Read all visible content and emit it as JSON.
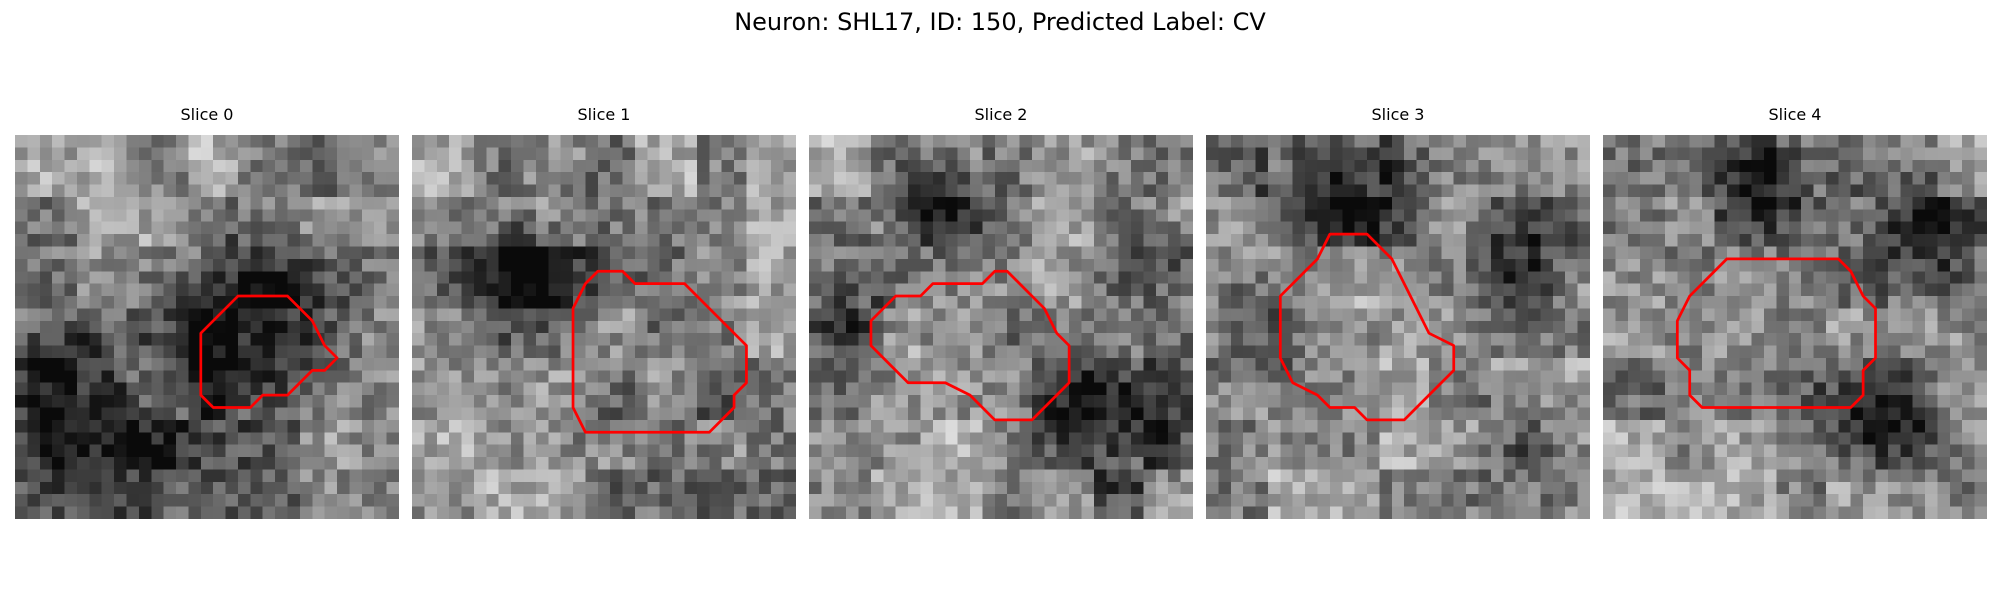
{
  "figure": {
    "title": "Neuron: SHL17, ID: 150, Predicted Label: CV",
    "contour_color": "#ff0000",
    "colormap": "grayscale",
    "grid_size": 31
  },
  "panels": [
    {
      "title": "Slice 0",
      "dark_spots": [
        [
          20,
          15,
          4.5,
          0.55
        ],
        [
          8,
          27,
          7,
          0.45
        ],
        [
          3,
          17,
          2.5,
          0.35
        ]
      ],
      "contour": [
        [
          15,
          16
        ],
        [
          18,
          13
        ],
        [
          22,
          13
        ],
        [
          24,
          15
        ],
        [
          25,
          17
        ],
        [
          26,
          18
        ],
        [
          25,
          19
        ],
        [
          24,
          19
        ],
        [
          23,
          20
        ],
        [
          22,
          21
        ],
        [
          20,
          21
        ],
        [
          19,
          22
        ],
        [
          16,
          22
        ],
        [
          15,
          21
        ],
        [
          15,
          20
        ]
      ]
    },
    {
      "title": "Slice 1",
      "dark_spots": [
        [
          9,
          11,
          3.5,
          0.5
        ],
        [
          20,
          26,
          5,
          0.2
        ]
      ],
      "contour": [
        [
          13,
          14
        ],
        [
          14,
          12
        ],
        [
          15,
          11
        ],
        [
          17,
          11
        ],
        [
          18,
          12
        ],
        [
          22,
          12
        ],
        [
          25,
          15
        ],
        [
          26,
          16
        ],
        [
          27,
          17
        ],
        [
          27,
          20
        ],
        [
          26,
          21
        ],
        [
          26,
          22
        ],
        [
          24,
          24
        ],
        [
          22,
          24
        ],
        [
          17,
          24
        ],
        [
          14,
          24
        ],
        [
          13,
          22
        ],
        [
          13,
          17
        ]
      ]
    },
    {
      "title": "Slice 2",
      "dark_spots": [
        [
          10,
          5,
          3,
          0.4
        ],
        [
          24,
          23,
          4,
          0.45
        ],
        [
          3,
          14,
          3,
          0.35
        ],
        [
          27,
          9,
          3,
          0.3
        ]
      ],
      "contour": [
        [
          5,
          15
        ],
        [
          7,
          13
        ],
        [
          9,
          13
        ],
        [
          10,
          12
        ],
        [
          14,
          12
        ],
        [
          15,
          11
        ],
        [
          16,
          11
        ],
        [
          17,
          12
        ],
        [
          18,
          13
        ],
        [
          19,
          14
        ],
        [
          20,
          16
        ],
        [
          21,
          17
        ],
        [
          21,
          20
        ],
        [
          20,
          21
        ],
        [
          18,
          23
        ],
        [
          16,
          23
        ],
        [
          15,
          23
        ],
        [
          13,
          21
        ],
        [
          11,
          20
        ],
        [
          8,
          20
        ],
        [
          5,
          17
        ]
      ]
    },
    {
      "title": "Slice 3",
      "dark_spots": [
        [
          11,
          4,
          4,
          0.5
        ],
        [
          26,
          11,
          3,
          0.45
        ],
        [
          4,
          16,
          3,
          0.35
        ],
        [
          26,
          26,
          3,
          0.3
        ]
      ],
      "contour": [
        [
          6,
          13
        ],
        [
          8,
          11
        ],
        [
          9,
          10
        ],
        [
          10,
          8
        ],
        [
          13,
          8
        ],
        [
          14,
          9
        ],
        [
          15,
          10
        ],
        [
          16,
          12
        ],
        [
          17,
          14
        ],
        [
          18,
          16
        ],
        [
          20,
          17
        ],
        [
          20,
          19
        ],
        [
          19,
          20
        ],
        [
          17,
          22
        ],
        [
          16,
          23
        ],
        [
          13,
          23
        ],
        [
          12,
          22
        ],
        [
          10,
          22
        ],
        [
          9,
          21
        ],
        [
          7,
          20
        ],
        [
          6,
          18
        ]
      ]
    },
    {
      "title": "Slice 4",
      "dark_spots": [
        [
          13,
          4,
          3,
          0.4
        ],
        [
          26,
          8,
          3.5,
          0.45
        ],
        [
          21,
          22,
          3,
          0.35
        ],
        [
          25,
          24,
          2.5,
          0.3
        ]
      ],
      "contour": [
        [
          7,
          13
        ],
        [
          9,
          11
        ],
        [
          10,
          10
        ],
        [
          19,
          10
        ],
        [
          20,
          11
        ],
        [
          21,
          13
        ],
        [
          22,
          14
        ],
        [
          22,
          18
        ],
        [
          21,
          19
        ],
        [
          21,
          21
        ],
        [
          20,
          22
        ],
        [
          18,
          22
        ],
        [
          17,
          22
        ],
        [
          16,
          22
        ],
        [
          14,
          22
        ],
        [
          13,
          22
        ],
        [
          8,
          22
        ],
        [
          7,
          21
        ],
        [
          7,
          19
        ],
        [
          6,
          18
        ],
        [
          6,
          15
        ]
      ]
    }
  ]
}
